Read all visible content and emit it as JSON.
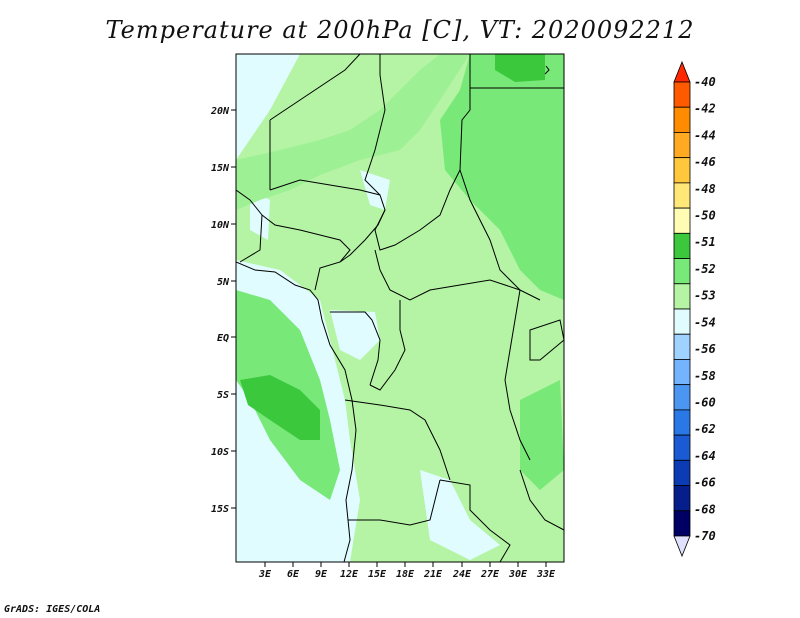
{
  "title": "Temperature at 200hPa [C], VT: 2020092212",
  "credit": "GrADS: IGES/COLA",
  "map": {
    "lat_labels": [
      "20N",
      "15N",
      "10N",
      "5N",
      "EQ",
      "5S",
      "10S",
      "15S"
    ],
    "lon_labels": [
      "3E",
      "6E",
      "9E",
      "12E",
      "15E",
      "18E",
      "21E",
      "24E",
      "27E",
      "30E",
      "33E"
    ],
    "field_colors": {
      "ocean_light": "#e0fcff",
      "light_green": "#b4f4a4",
      "medium_green": "#78e878",
      "dark_green": "#3cc83c"
    }
  },
  "colorbar": {
    "labels": [
      "-40",
      "-42",
      "-44",
      "-46",
      "-48",
      "-50",
      "-51",
      "-52",
      "-53",
      "-54",
      "-56",
      "-58",
      "-60",
      "-62",
      "-64",
      "-66",
      "-68",
      "-70"
    ],
    "colors": [
      "#ff2800",
      "#ff5a00",
      "#ff8c00",
      "#ffaa22",
      "#ffc83c",
      "#ffe878",
      "#fffcb4",
      "#3cc83c",
      "#78e878",
      "#b4f4a4",
      "#e0fcff",
      "#a0d2ff",
      "#74b4ff",
      "#4b96f0",
      "#2a78e6",
      "#1a5ad2",
      "#0c3cb4",
      "#061e8c",
      "#000064",
      "#e0e0ff"
    ]
  }
}
